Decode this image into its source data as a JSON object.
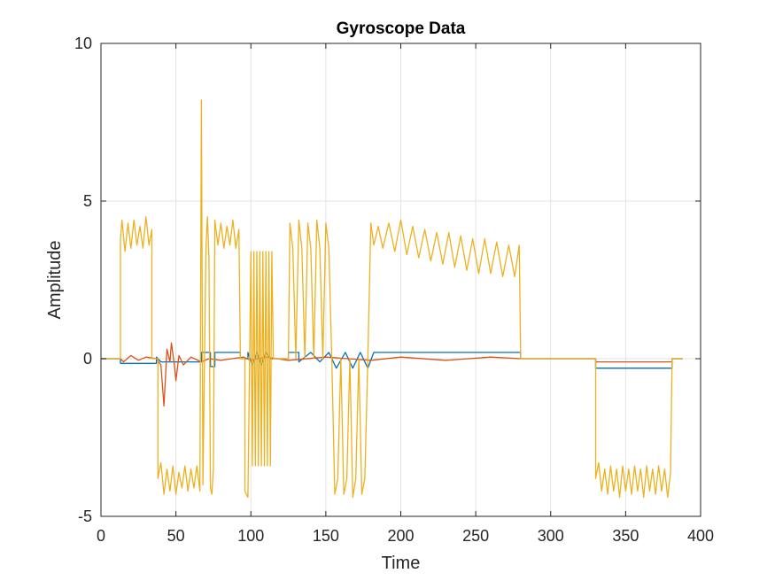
{
  "chart_data": {
    "type": "line",
    "title": "Gyroscope Data",
    "xlabel": "Time",
    "ylabel": "Amplitude",
    "xlim": [
      0,
      400
    ],
    "ylim": [
      -5,
      10
    ],
    "xticks": [
      0,
      50,
      100,
      150,
      200,
      250,
      300,
      350,
      400
    ],
    "yticks": [
      -5,
      0,
      5,
      10
    ],
    "grid": true,
    "legend": "none",
    "series": [
      {
        "color": "#0072BD",
        "points": [
          [
            0,
            0
          ],
          [
            13,
            0
          ],
          [
            13,
            -0.15
          ],
          [
            37,
            -0.15
          ],
          [
            37,
            0.05
          ],
          [
            40,
            -0.1
          ],
          [
            67,
            -0.1
          ],
          [
            67,
            0.2
          ],
          [
            73,
            0.2
          ],
          [
            73,
            -0.25
          ],
          [
            76,
            -0.25
          ],
          [
            76,
            0.2
          ],
          [
            93,
            0.2
          ],
          [
            93,
            0
          ],
          [
            98,
            0
          ],
          [
            98,
            0.2
          ],
          [
            101,
            -0.2
          ],
          [
            104,
            0.2
          ],
          [
            107,
            -0.2
          ],
          [
            110,
            0.2
          ],
          [
            113,
            0
          ],
          [
            125,
            0
          ],
          [
            125,
            0.2
          ],
          [
            132,
            0.2
          ],
          [
            132,
            -0.1
          ],
          [
            140,
            0.2
          ],
          [
            146,
            -0.1
          ],
          [
            152,
            0.2
          ],
          [
            157,
            -0.3
          ],
          [
            163,
            0.2
          ],
          [
            168,
            -0.3
          ],
          [
            173,
            0.2
          ],
          [
            178,
            -0.3
          ],
          [
            182,
            0.2
          ],
          [
            280,
            0.2
          ],
          [
            280,
            0
          ],
          [
            330,
            0
          ],
          [
            330,
            -0.3
          ],
          [
            381,
            -0.3
          ],
          [
            381,
            0
          ],
          [
            388,
            0
          ]
        ]
      },
      {
        "color": "#D95319",
        "points": [
          [
            0,
            0
          ],
          [
            13,
            0
          ],
          [
            15,
            -0.1
          ],
          [
            20,
            0.1
          ],
          [
            25,
            -0.05
          ],
          [
            30,
            0.05
          ],
          [
            37,
            0
          ],
          [
            40,
            -0.2
          ],
          [
            42,
            -1.5
          ],
          [
            44,
            0.3
          ],
          [
            46,
            -0.1
          ],
          [
            47,
            0.5
          ],
          [
            49,
            -0.2
          ],
          [
            50,
            -0.7
          ],
          [
            52,
            0.1
          ],
          [
            55,
            -0.2
          ],
          [
            60,
            0.05
          ],
          [
            67,
            -0.1
          ],
          [
            72,
            0
          ],
          [
            80,
            -0.05
          ],
          [
            95,
            0.05
          ],
          [
            100,
            -0.05
          ],
          [
            110,
            0.05
          ],
          [
            125,
            -0.05
          ],
          [
            150,
            0.05
          ],
          [
            180,
            -0.05
          ],
          [
            200,
            0.05
          ],
          [
            230,
            -0.05
          ],
          [
            260,
            0.05
          ],
          [
            280,
            0
          ],
          [
            330,
            0
          ],
          [
            330,
            -0.1
          ],
          [
            381,
            -0.1
          ],
          [
            381,
            0
          ],
          [
            388,
            0
          ]
        ]
      },
      {
        "color": "#EDB120",
        "points": [
          [
            0,
            0
          ],
          [
            13,
            0
          ],
          [
            13,
            3.8
          ],
          [
            14,
            4.4
          ],
          [
            16,
            3.4
          ],
          [
            18,
            4.3
          ],
          [
            20,
            3.5
          ],
          [
            22,
            4.4
          ],
          [
            24,
            3.6
          ],
          [
            26,
            4.2
          ],
          [
            28,
            3.5
          ],
          [
            30,
            4.5
          ],
          [
            32,
            3.6
          ],
          [
            34,
            4.1
          ],
          [
            34,
            0
          ],
          [
            38,
            0
          ],
          [
            38,
            -3.8
          ],
          [
            40,
            -3.3
          ],
          [
            42,
            -4.3
          ],
          [
            44,
            -3.5
          ],
          [
            46,
            -4.2
          ],
          [
            48,
            -3.4
          ],
          [
            50,
            -4.3
          ],
          [
            52,
            -3.6
          ],
          [
            54,
            -4.1
          ],
          [
            56,
            -3.4
          ],
          [
            58,
            -4.2
          ],
          [
            60,
            -3.5
          ],
          [
            62,
            -4.1
          ],
          [
            64,
            -3.4
          ],
          [
            66,
            -4.2
          ],
          [
            67,
            8.2
          ],
          [
            68,
            -4.0
          ],
          [
            70,
            3.5
          ],
          [
            71,
            4.5
          ],
          [
            72,
            3.2
          ],
          [
            73,
            -4.1
          ],
          [
            74,
            -4.3
          ],
          [
            75,
            -3.5
          ],
          [
            76,
            4.4
          ],
          [
            78,
            3.6
          ],
          [
            80,
            4.3
          ],
          [
            82,
            3.5
          ],
          [
            84,
            4.2
          ],
          [
            86,
            3.6
          ],
          [
            88,
            4.4
          ],
          [
            90,
            3.5
          ],
          [
            92,
            4.1
          ],
          [
            93,
            0
          ],
          [
            96,
            0
          ],
          [
            96,
            -4.2
          ],
          [
            98,
            -4.4
          ],
          [
            100,
            3.4
          ],
          [
            101,
            -3.4
          ],
          [
            102,
            3.4
          ],
          [
            103,
            -3.4
          ],
          [
            104,
            3.4
          ],
          [
            105,
            -3.4
          ],
          [
            106,
            3.4
          ],
          [
            107,
            -3.4
          ],
          [
            108,
            3.4
          ],
          [
            109,
            -3.4
          ],
          [
            110,
            3.4
          ],
          [
            111,
            -3.4
          ],
          [
            112,
            3.4
          ],
          [
            113,
            -3.4
          ],
          [
            114,
            3.4
          ],
          [
            115,
            0
          ],
          [
            125,
            0
          ],
          [
            126,
            4.3
          ],
          [
            128,
            3.5
          ],
          [
            130,
            0
          ],
          [
            132,
            4.4
          ],
          [
            134,
            3.5
          ],
          [
            136,
            0
          ],
          [
            138,
            4.3
          ],
          [
            140,
            3.5
          ],
          [
            142,
            0
          ],
          [
            144,
            4.4
          ],
          [
            146,
            3.5
          ],
          [
            148,
            0
          ],
          [
            150,
            4.3
          ],
          [
            152,
            3.5
          ],
          [
            154,
            0
          ],
          [
            156,
            -4.3
          ],
          [
            158,
            -3.8
          ],
          [
            160,
            0
          ],
          [
            162,
            -4.3
          ],
          [
            164,
            -3.8
          ],
          [
            166,
            0
          ],
          [
            168,
            -4.4
          ],
          [
            170,
            -3.8
          ],
          [
            172,
            0
          ],
          [
            174,
            -4.3
          ],
          [
            176,
            -3.8
          ],
          [
            178,
            0
          ],
          [
            180,
            4.3
          ],
          [
            182,
            3.6
          ],
          [
            185,
            4.2
          ],
          [
            188,
            3.5
          ],
          [
            192,
            4.3
          ],
          [
            196,
            3.4
          ],
          [
            200,
            4.4
          ],
          [
            204,
            3.3
          ],
          [
            208,
            4.2
          ],
          [
            212,
            3.2
          ],
          [
            216,
            4.1
          ],
          [
            220,
            3.1
          ],
          [
            224,
            4.0
          ],
          [
            228,
            3.0
          ],
          [
            232,
            4.0
          ],
          [
            236,
            2.9
          ],
          [
            240,
            3.9
          ],
          [
            244,
            2.8
          ],
          [
            248,
            3.8
          ],
          [
            252,
            2.7
          ],
          [
            256,
            3.8
          ],
          [
            260,
            2.7
          ],
          [
            264,
            3.7
          ],
          [
            268,
            2.6
          ],
          [
            272,
            3.6
          ],
          [
            276,
            2.6
          ],
          [
            279,
            3.6
          ],
          [
            280,
            0
          ],
          [
            330,
            0
          ],
          [
            330,
            -3.8
          ],
          [
            332,
            -3.3
          ],
          [
            334,
            -4.2
          ],
          [
            336,
            -3.5
          ],
          [
            338,
            -4.3
          ],
          [
            340,
            -3.4
          ],
          [
            342,
            -4.2
          ],
          [
            344,
            -3.5
          ],
          [
            346,
            -4.4
          ],
          [
            348,
            -3.4
          ],
          [
            350,
            -4.2
          ],
          [
            352,
            -3.5
          ],
          [
            354,
            -4.3
          ],
          [
            356,
            -3.4
          ],
          [
            358,
            -4.2
          ],
          [
            360,
            -3.5
          ],
          [
            362,
            -4.4
          ],
          [
            364,
            -3.4
          ],
          [
            366,
            -4.2
          ],
          [
            368,
            -3.5
          ],
          [
            370,
            -4.3
          ],
          [
            372,
            -3.4
          ],
          [
            374,
            -4.2
          ],
          [
            376,
            -3.5
          ],
          [
            378,
            -4.4
          ],
          [
            380,
            -3.6
          ],
          [
            381,
            0
          ],
          [
            388,
            0
          ]
        ]
      }
    ]
  }
}
